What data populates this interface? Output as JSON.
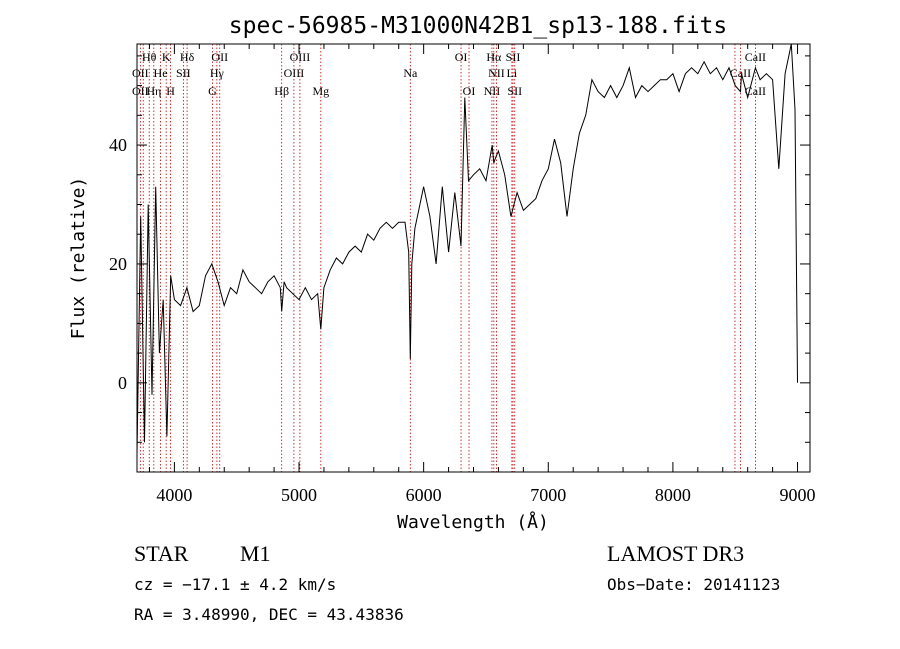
{
  "chart_data": {
    "type": "line",
    "title": "spec-56985-M31000N42B1_sp13-188.fits",
    "xlabel": "Wavelength (Å)",
    "ylabel": "Flux (relative)",
    "xlim": [
      3700,
      9100
    ],
    "ylim": [
      -15,
      57
    ],
    "xticks": [
      4000,
      5000,
      6000,
      7000,
      8000,
      9000
    ],
    "xtick_labels": [
      "4000",
      "5000",
      "6000",
      "7000",
      "8000",
      "9000"
    ],
    "yticks": [
      0,
      20,
      40
    ],
    "ytick_labels": [
      "0",
      "20",
      "40"
    ],
    "series": [
      {
        "name": "spectrum",
        "x": [
          3700,
          3730,
          3760,
          3790,
          3820,
          3850,
          3880,
          3910,
          3940,
          3970,
          4000,
          4050,
          4100,
          4150,
          4200,
          4250,
          4300,
          4350,
          4400,
          4450,
          4500,
          4550,
          4600,
          4650,
          4700,
          4750,
          4800,
          4850,
          4861,
          4880,
          4900,
          4950,
          5000,
          5050,
          5100,
          5150,
          5175,
          5200,
          5250,
          5300,
          5350,
          5400,
          5450,
          5500,
          5550,
          5600,
          5650,
          5700,
          5750,
          5800,
          5850,
          5880,
          5893,
          5905,
          5930,
          5960,
          6000,
          6050,
          6100,
          6150,
          6200,
          6250,
          6300,
          6330,
          6360,
          6400,
          6450,
          6500,
          6550,
          6563,
          6580,
          6600,
          6650,
          6700,
          6750,
          6800,
          6850,
          6900,
          6950,
          7000,
          7050,
          7100,
          7150,
          7200,
          7250,
          7300,
          7350,
          7400,
          7450,
          7500,
          7550,
          7600,
          7650,
          7700,
          7750,
          7800,
          7850,
          7900,
          7950,
          8000,
          8050,
          8100,
          8150,
          8200,
          8250,
          8300,
          8350,
          8400,
          8450,
          8500,
          8542,
          8550,
          8600,
          8662,
          8700,
          8750,
          8800,
          8850,
          8900,
          8950,
          8980,
          9000
        ],
        "y": [
          -12,
          28,
          -10,
          30,
          -2,
          33,
          5,
          14,
          -9,
          18,
          14,
          13,
          16,
          12,
          13,
          18,
          20,
          17,
          13,
          16,
          15,
          19,
          17,
          16,
          15,
          17,
          18,
          16,
          12,
          17,
          16,
          15,
          14,
          16,
          14,
          15,
          9,
          16,
          19,
          21,
          20,
          22,
          23,
          22,
          25,
          24,
          26,
          27,
          26,
          27,
          27,
          22,
          4,
          20,
          26,
          29,
          33,
          28,
          20,
          33,
          22,
          32,
          23,
          48,
          34,
          35,
          36,
          34,
          40,
          37,
          38,
          39,
          35,
          28,
          32,
          29,
          30,
          31,
          34,
          36,
          41,
          37,
          28,
          36,
          42,
          45,
          51,
          49,
          48,
          50,
          48,
          50,
          53,
          48,
          50,
          49,
          50,
          51,
          51,
          52,
          49,
          52,
          53,
          52,
          54,
          52,
          53,
          51,
          53,
          50,
          49,
          52,
          48,
          53,
          51,
          52,
          51,
          36,
          52,
          58,
          46,
          0
        ]
      }
    ],
    "spectral_lines": [
      {
        "label": "Hθ",
        "wavelength": 3798,
        "row": 1
      },
      {
        "label": "K",
        "wavelength": 3934,
        "row": 1
      },
      {
        "label": "Hδ",
        "wavelength": 4102,
        "row": 1
      },
      {
        "label": "OII",
        "wavelength": 4364,
        "row": 1
      },
      {
        "label": "OIII",
        "wavelength": 5007,
        "row": 1
      },
      {
        "label": "OI",
        "wavelength": 6300,
        "row": 1
      },
      {
        "label": "Hα",
        "wavelength": 6563,
        "row": 1
      },
      {
        "label": "SII",
        "wavelength": 6717,
        "row": 1
      },
      {
        "label": "CaII",
        "wavelength": 8662,
        "row": 1
      },
      {
        "label": "OII",
        "wavelength": 3727,
        "row": 2
      },
      {
        "label": "He",
        "wavelength": 3889,
        "row": 2
      },
      {
        "label": "SII",
        "wavelength": 4072,
        "row": 2
      },
      {
        "label": "Hγ",
        "wavelength": 4341,
        "row": 2
      },
      {
        "label": "OIII",
        "wavelength": 4959,
        "row": 2
      },
      {
        "label": "Na",
        "wavelength": 5893,
        "row": 2
      },
      {
        "label": "NII",
        "wavelength": 6584,
        "row": 2
      },
      {
        "label": "Li",
        "wavelength": 6708,
        "row": 2
      },
      {
        "label": "CaII",
        "wavelength": 8542,
        "row": 2
      },
      {
        "label": "OII",
        "wavelength": 3727,
        "row": 3
      },
      {
        "label": "Hη",
        "wavelength": 3835,
        "row": 3
      },
      {
        "label": "H",
        "wavelength": 3969,
        "row": 3
      },
      {
        "label": "G",
        "wavelength": 4305,
        "row": 3
      },
      {
        "label": "Hβ",
        "wavelength": 4861,
        "row": 3
      },
      {
        "label": "Mg",
        "wavelength": 5175,
        "row": 3
      },
      {
        "label": "OI",
        "wavelength": 6364,
        "row": 3
      },
      {
        "label": "NII",
        "wavelength": 6548,
        "row": 3
      },
      {
        "label": "SII",
        "wavelength": 6731,
        "row": 3
      },
      {
        "label": "CaII",
        "wavelength": 8662,
        "row": 3
      }
    ],
    "marker_lines": [
      3727,
      3750,
      3798,
      3835,
      3889,
      3934,
      3969,
      4072,
      4102,
      4305,
      4341,
      4364,
      4861,
      4959,
      5007,
      5175,
      5893,
      6300,
      6364,
      6548,
      6563,
      6584,
      6708,
      6717,
      6731,
      8498,
      8542,
      8662
    ]
  },
  "info": {
    "object_class": "STAR",
    "subclass": "M1",
    "survey": "LAMOST DR3",
    "cz": "cz = −17.1 ± 4.2 km/s",
    "obs_date": "Obs−Date: 20141123",
    "coords": "RA =   3.48990, DEC =  43.43836"
  },
  "colors": {
    "line": "#000000",
    "markers": "#c00000",
    "axes": "#000000"
  }
}
